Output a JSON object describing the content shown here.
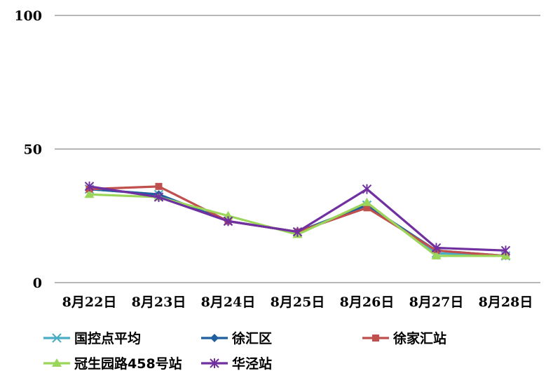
{
  "chart_data": {
    "type": "line",
    "categories": [
      "8月22日",
      "8月23日",
      "8月24日",
      "8月25日",
      "8月26日",
      "8月27日",
      "8月28日"
    ],
    "ylim": [
      0,
      100
    ],
    "yticks": [
      0,
      50,
      100
    ],
    "grid": true,
    "legend_position": "bottom",
    "series": [
      {
        "name": "国控点平均",
        "color": "#4BACC6",
        "marker": "asterisk",
        "values": [
          35,
          33,
          23,
          19,
          29,
          11,
          10
        ]
      },
      {
        "name": "徐汇区",
        "color": "#1F5FA0",
        "marker": "diamond",
        "values": [
          35,
          33,
          23,
          19,
          29,
          12,
          10
        ]
      },
      {
        "name": "徐家汇站",
        "color": "#C0504D",
        "marker": "square",
        "values": [
          35,
          36,
          23,
          19,
          28,
          12,
          10
        ]
      },
      {
        "name": "冠生园路458号站",
        "color": "#9BD65A",
        "marker": "triangle",
        "values": [
          33,
          32,
          25,
          18,
          30,
          10,
          10
        ]
      },
      {
        "name": "华泾站",
        "color": "#7030A0",
        "marker": "star",
        "values": [
          36,
          32,
          23,
          19,
          35,
          13,
          12
        ]
      }
    ]
  }
}
